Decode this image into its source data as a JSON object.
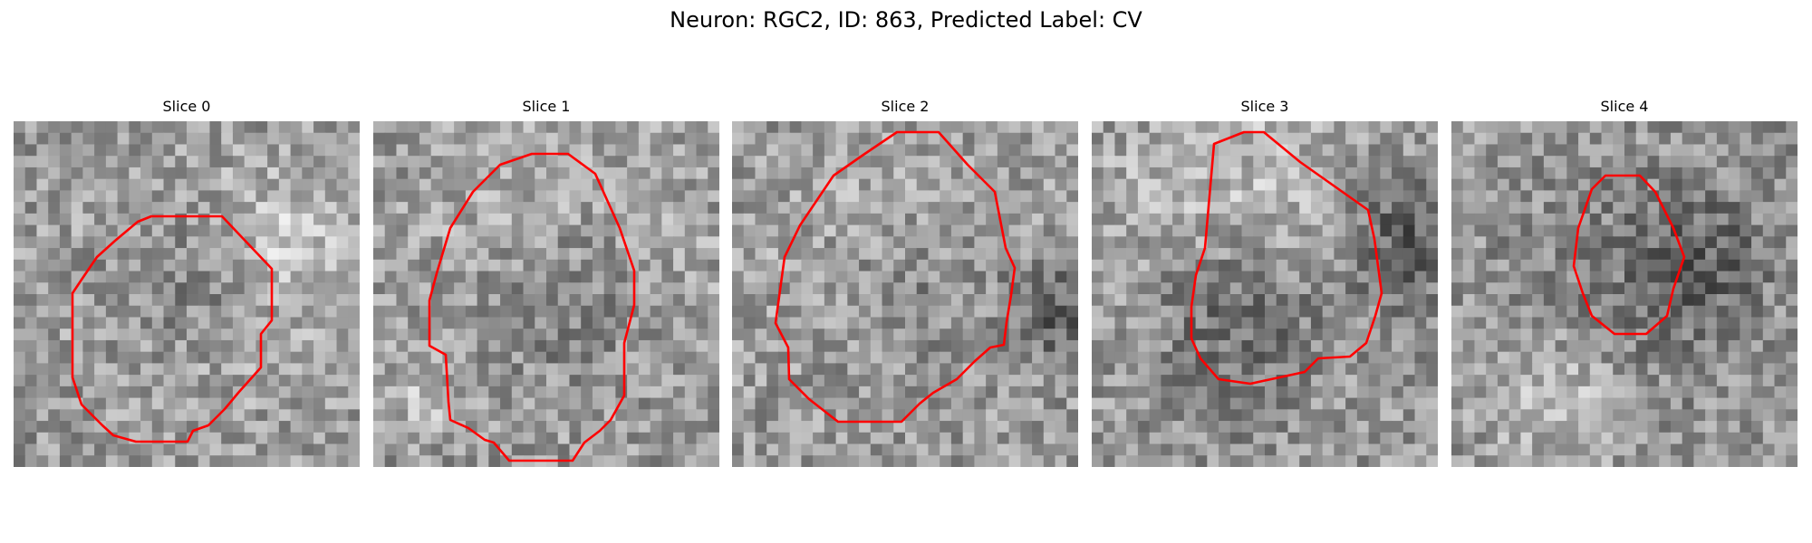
{
  "figure": {
    "title": "Neuron: RGC2, ID: 863, Predicted Label: CV"
  },
  "slices": [
    {
      "title": "Slice 0"
    },
    {
      "title": "Slice 1"
    },
    {
      "title": "Slice 2"
    },
    {
      "title": "Slice 3"
    },
    {
      "title": "Slice 4"
    }
  ],
  "colors": {
    "contour": "#ff0000",
    "background": "#ffffff",
    "image_colormap": "grayscale"
  }
}
